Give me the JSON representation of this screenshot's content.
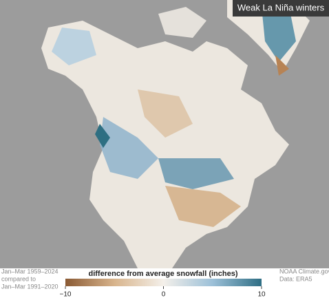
{
  "title": "Weak La Niña winters",
  "legend": {
    "title": "difference from average snowfall (inches)",
    "range": [
      -10,
      10
    ],
    "ticks": [
      {
        "value": -10,
        "label": "−10"
      },
      0,
      10
    ],
    "colors": [
      "#8a5a34",
      "#d8b48c",
      "#f4f0ea",
      "#9cc0d8",
      "#2f6e84"
    ]
  },
  "notes": [
    "Jan–Mar 1959–2024",
    "compared to",
    "Jan–Mar 1991–2020"
  ],
  "credits": [
    "NOAA Climate.gov",
    "Data: ERA5"
  ]
}
